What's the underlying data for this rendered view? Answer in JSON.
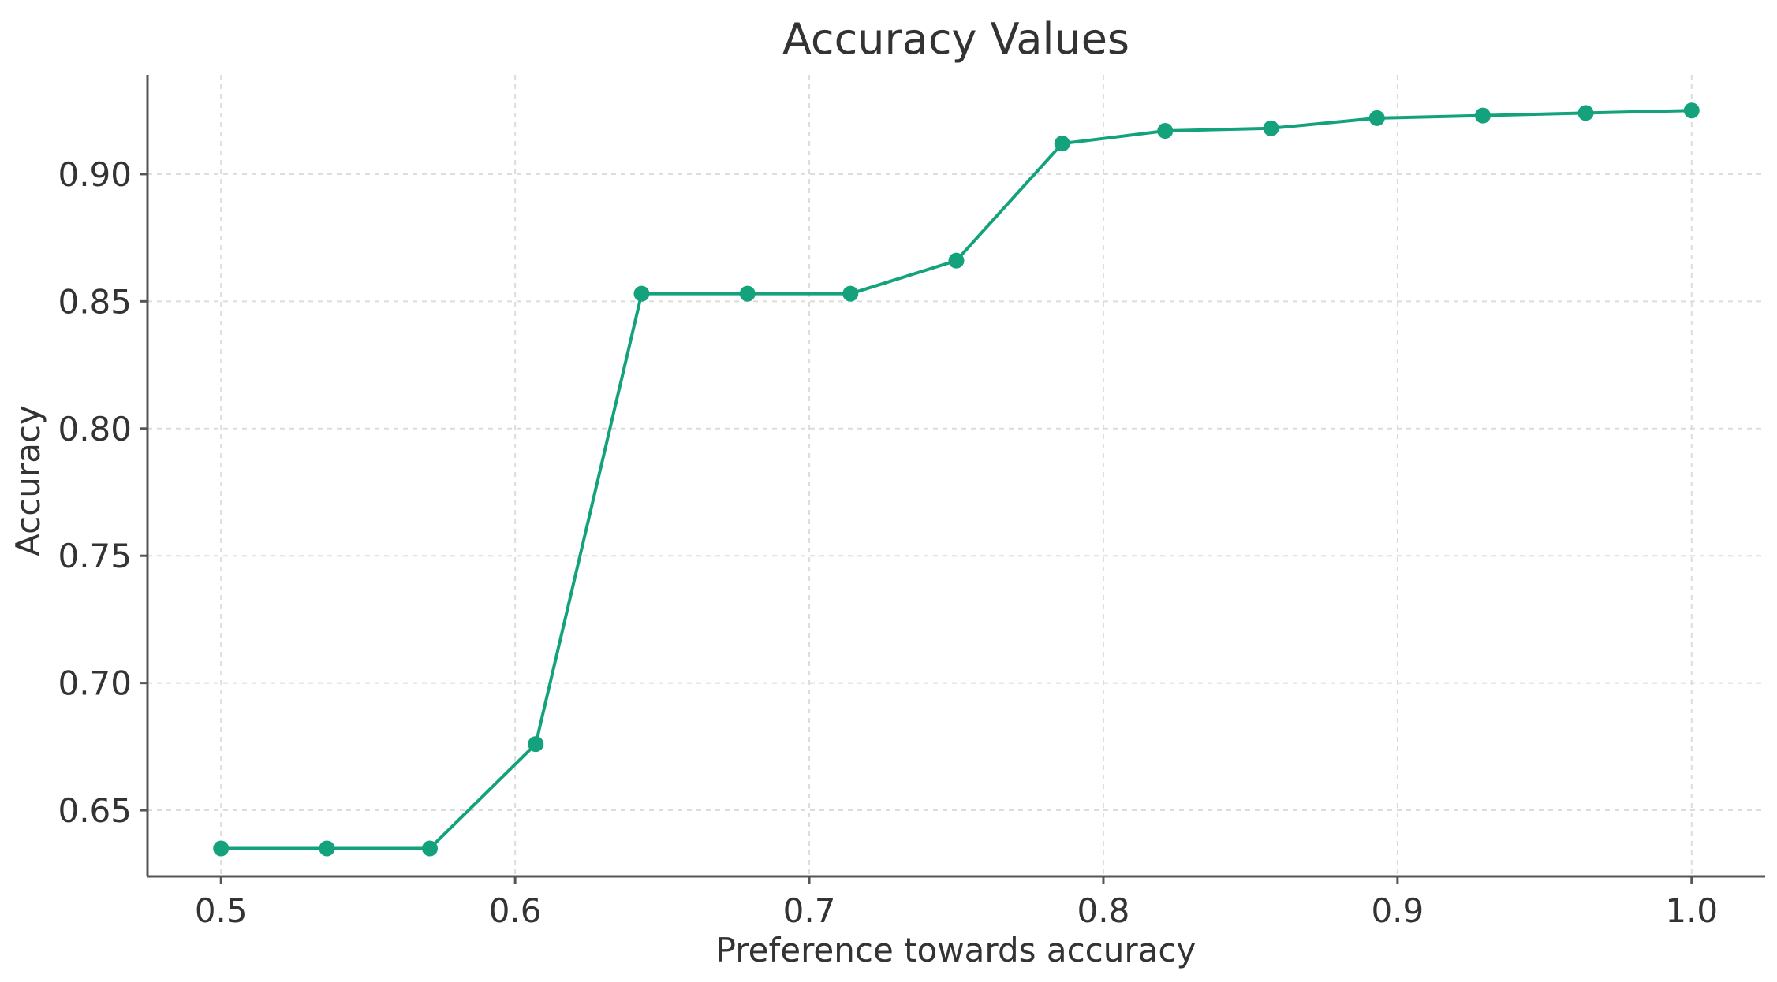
{
  "chart_data": {
    "type": "line",
    "title": "Accuracy Values",
    "xlabel": "Preference towards accuracy",
    "ylabel": "Accuracy",
    "xlim": [
      0.475,
      1.025
    ],
    "ylim": [
      0.624,
      0.939
    ],
    "xticks": [
      0.5,
      0.6,
      0.7,
      0.8,
      0.9,
      1.0
    ],
    "xtick_labels": [
      "0.5",
      "0.6",
      "0.7",
      "0.8",
      "0.9",
      "1.0"
    ],
    "yticks": [
      0.65,
      0.7,
      0.75,
      0.8,
      0.85,
      0.9
    ],
    "ytick_labels": [
      "0.65",
      "0.70",
      "0.75",
      "0.80",
      "0.85",
      "0.90"
    ],
    "grid": true,
    "series": [
      {
        "color": "#13a27c",
        "marker": "circle",
        "x": [
          0.5,
          0.536,
          0.571,
          0.607,
          0.643,
          0.679,
          0.714,
          0.75,
          0.786,
          0.821,
          0.857,
          0.893,
          0.929,
          0.964,
          1.0
        ],
        "y": [
          0.635,
          0.635,
          0.635,
          0.676,
          0.853,
          0.853,
          0.853,
          0.866,
          0.912,
          0.917,
          0.918,
          0.922,
          0.923,
          0.924,
          0.925
        ]
      }
    ]
  }
}
